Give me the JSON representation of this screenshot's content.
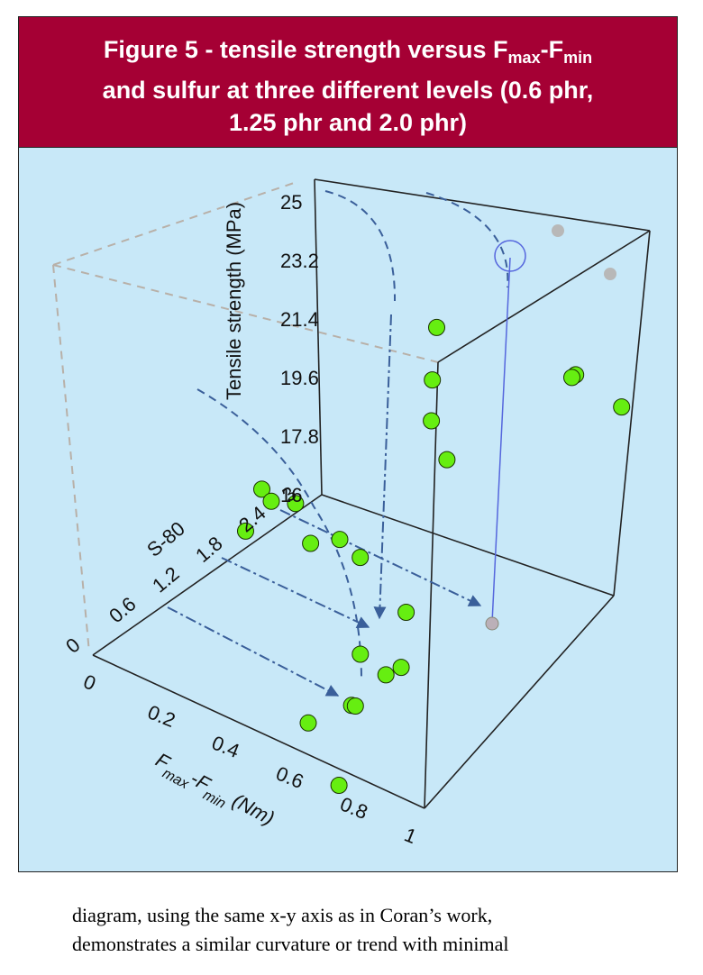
{
  "title": {
    "line1_pre": "Figure 5 - tensile strength versus F",
    "line1_sub1": "max",
    "line1_mid": "-F",
    "line1_sub2": "min",
    "line2": "and sulfur at three different levels (0.6 phr,",
    "line3": "1.25 phr and 2.0 phr)"
  },
  "caption": {
    "line1": "diagram, using the same x-y axis as in Coran’s work,",
    "line2": "demonstrates a similar curvature or trend with minimal"
  },
  "colors": {
    "title_bg": "#a50034",
    "plot_bg": "#c8e8f8",
    "marker": "#66ee11",
    "arrow": "#3a5f9a",
    "guide": "#b8b0a8"
  },
  "chart_data": {
    "type": "scatter",
    "projection": "3d",
    "title": "Figure 5 - tensile strength versus Fmax-Fmin and sulfur at three different levels (0.6 phr, 1.25 phr and 2.0 phr)",
    "xlabel": {
      "main": "F",
      "sub1": "max",
      "mid": "-F",
      "sub2": "min",
      "units": " (Nm)"
    },
    "ylabel": "S-80",
    "zlabel": "Tensile strength (MPa)",
    "xlim": [
      0,
      1
    ],
    "ylim": [
      0,
      3
    ],
    "zlim": [
      16,
      25
    ],
    "x_ticks": [
      "0",
      "0.2",
      "0.4",
      "0.6",
      "0.8",
      "1"
    ],
    "y_ticks": [
      "0",
      "0.6",
      "1.2",
      "1.8",
      "2.4",
      "3"
    ],
    "z_ticks": [
      "16",
      "17.8",
      "19.6",
      "21.4",
      "23.2",
      "25"
    ],
    "points": [
      {
        "x": 0.45,
        "y": 2.55,
        "z": 24.0
      },
      {
        "x": 0.46,
        "y": 2.45,
        "z": 22.6
      },
      {
        "x": 0.48,
        "y": 2.35,
        "z": 21.6
      },
      {
        "x": 0.55,
        "y": 2.25,
        "z": 20.9
      },
      {
        "x": 0.8,
        "y": 2.85,
        "z": 23.7
      },
      {
        "x": 0.8,
        "y": 2.8,
        "z": 23.7
      },
      {
        "x": 0.95,
        "y": 2.8,
        "z": 23.5
      },
      {
        "x": 0.13,
        "y": 1.65,
        "z": 19.0
      },
      {
        "x": 0.17,
        "y": 1.6,
        "z": 18.9
      },
      {
        "x": 0.22,
        "y": 1.7,
        "z": 18.9
      },
      {
        "x": 0.15,
        "y": 1.35,
        "z": 18.3
      },
      {
        "x": 0.3,
        "y": 1.55,
        "z": 18.3
      },
      {
        "x": 0.25,
        "y": 2.15,
        "z": 17.2
      },
      {
        "x": 0.3,
        "y": 2.2,
        "z": 16.8
      },
      {
        "x": 0.45,
        "y": 2.15,
        "z": 15.9
      },
      {
        "x": 0.45,
        "y": 1.55,
        "z": 15.6
      },
      {
        "x": 0.55,
        "y": 1.45,
        "z": 15.6
      },
      {
        "x": 0.55,
        "y": 1.65,
        "z": 15.5
      },
      {
        "x": 0.55,
        "y": 1.0,
        "z": 15.4
      },
      {
        "x": 0.55,
        "y": 1.05,
        "z": 15.3
      },
      {
        "x": 0.5,
        "y": 0.65,
        "z": 15.2
      },
      {
        "x": 0.65,
        "y": 0.4,
        "z": 14.4
      }
    ],
    "highlighted_point": {
      "x": 0.95,
      "y": 2.8,
      "z": 23.5
    },
    "grid": false,
    "legend": "none"
  }
}
